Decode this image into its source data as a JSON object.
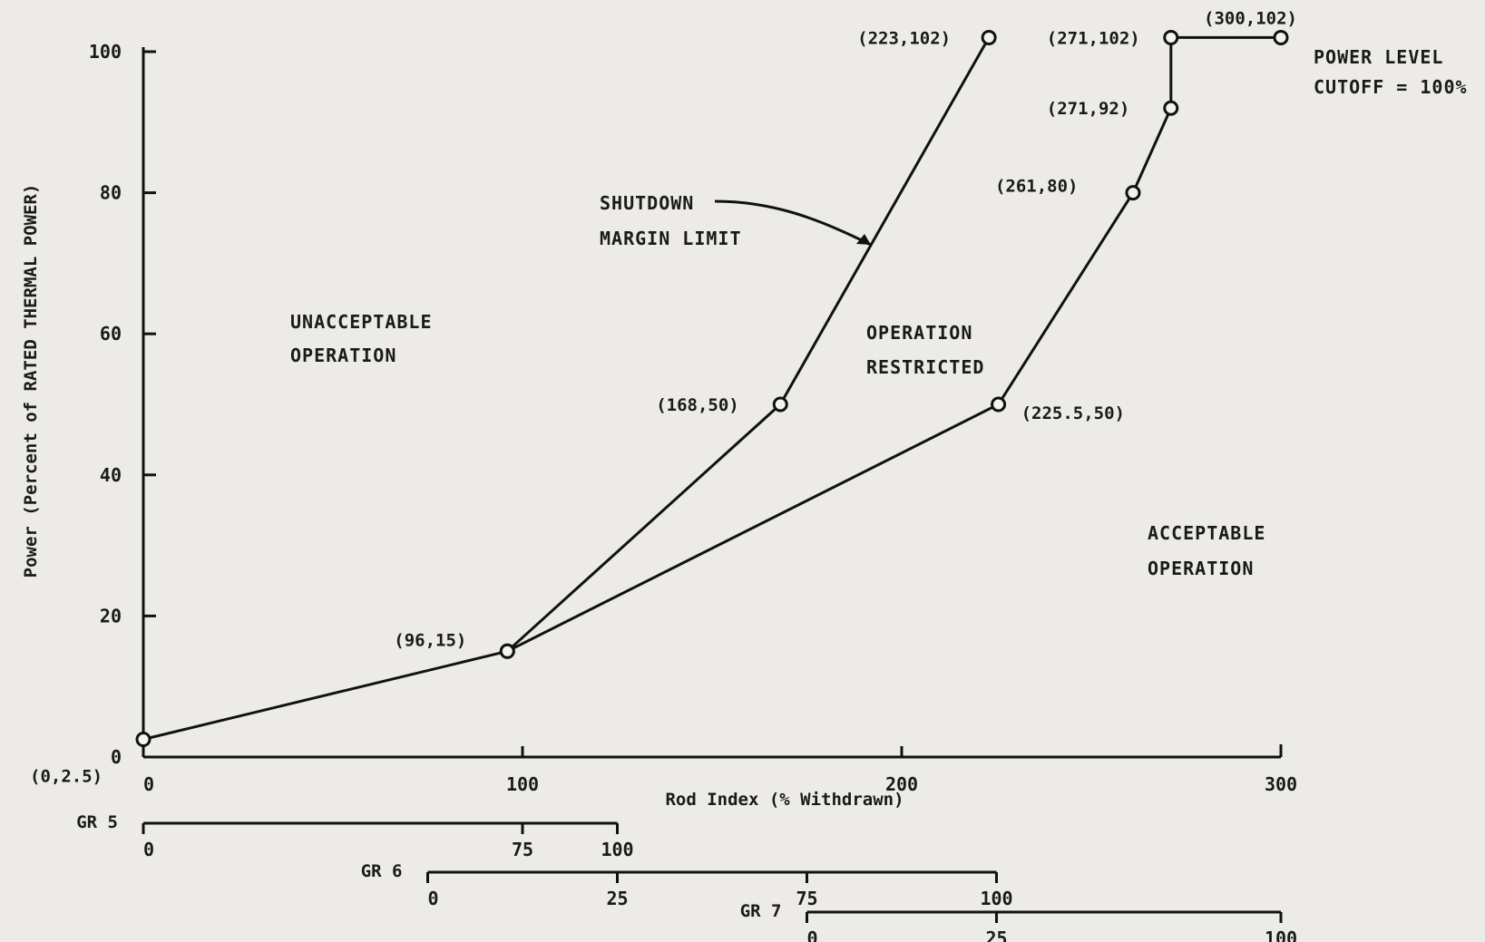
{
  "chart_data": {
    "type": "line",
    "xlabel": "Rod Index (% Withdrawn)",
    "ylabel": "Power (Percent of RATED THERMAL POWER)",
    "xlim": [
      0,
      300
    ],
    "ylim": [
      0,
      100
    ],
    "x_ticks": [
      "0",
      "100",
      "200",
      "300"
    ],
    "y_ticks": [
      "0",
      "20",
      "40",
      "60",
      "80",
      "100"
    ],
    "grid": false,
    "series": [
      {
        "name": "SHUTDOWN MARGIN LIMIT",
        "points": [
          {
            "x": 0,
            "y": 2.5,
            "label": "(0,2.5)"
          },
          {
            "x": 96,
            "y": 15,
            "label": "(96,15)"
          },
          {
            "x": 168,
            "y": 50,
            "label": "(168,50)"
          },
          {
            "x": 223,
            "y": 102,
            "label": "(223,102)"
          }
        ]
      },
      {
        "name": "",
        "points": [
          {
            "x": 96,
            "y": 15,
            "label": ""
          },
          {
            "x": 225.5,
            "y": 50,
            "label": "(225.5,50)"
          },
          {
            "x": 261,
            "y": 80,
            "label": "(261,80)"
          },
          {
            "x": 271,
            "y": 92,
            "label": "(271,92)"
          },
          {
            "x": 271,
            "y": 102,
            "label": "(271,102)"
          },
          {
            "x": 300,
            "y": 102,
            "label": "(300,102)"
          }
        ]
      }
    ],
    "annotations": {
      "shutdown_line1": "SHUTDOWN",
      "shutdown_line2": "MARGIN LIMIT",
      "unacceptable_line1": "UNACCEPTABLE",
      "unacceptable_line2": "OPERATION",
      "restricted_line1": "OPERATION",
      "restricted_line2": "RESTRICTED",
      "acceptable_line1": "ACCEPTABLE",
      "acceptable_line2": "OPERATION",
      "cutoff_line1": "POWER LEVEL",
      "cutoff_line2": "CUTOFF = 100%"
    },
    "group_scales": [
      {
        "name": "GR 5",
        "start_index": 0,
        "end_index": 125,
        "ticks": [
          {
            "index": 0,
            "label": "0"
          },
          {
            "index": 100,
            "label": "75"
          },
          {
            "index": 125,
            "label": "100"
          }
        ]
      },
      {
        "name": "GR 6",
        "start_index": 75,
        "end_index": 225,
        "ticks": [
          {
            "index": 75,
            "label": "0"
          },
          {
            "index": 125,
            "label": "25"
          },
          {
            "index": 175,
            "label": "75"
          },
          {
            "index": 225,
            "label": "100"
          }
        ]
      },
      {
        "name": "GR 7",
        "start_index": 175,
        "end_index": 300,
        "ticks": [
          {
            "index": 175,
            "label": "0"
          },
          {
            "index": 225,
            "label": "25"
          },
          {
            "index": 300,
            "label": "100"
          }
        ]
      }
    ]
  }
}
